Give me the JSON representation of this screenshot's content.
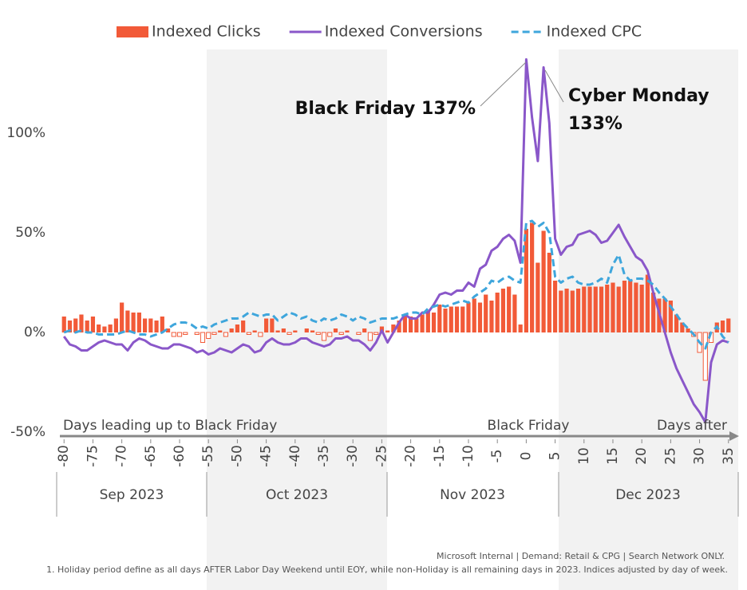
{
  "chart_data": {
    "type": "combo",
    "legend_position": "top",
    "x": [
      -80,
      -79,
      -78,
      -77,
      -76,
      -75,
      -74,
      -73,
      -72,
      -71,
      -70,
      -69,
      -68,
      -67,
      -66,
      -65,
      -64,
      -63,
      -62,
      -61,
      -60,
      -59,
      -58,
      -57,
      -56,
      -55,
      -54,
      -53,
      -52,
      -51,
      -50,
      -49,
      -48,
      -47,
      -46,
      -45,
      -44,
      -43,
      -42,
      -41,
      -40,
      -39,
      -38,
      -37,
      -36,
      -35,
      -34,
      -33,
      -32,
      -31,
      -30,
      -29,
      -28,
      -27,
      -26,
      -25,
      -24,
      -23,
      -22,
      -21,
      -20,
      -19,
      -18,
      -17,
      -16,
      -15,
      -14,
      -13,
      -12,
      -11,
      -10,
      -9,
      -8,
      -7,
      -6,
      -5,
      -4,
      -3,
      -2,
      -1,
      0,
      1,
      2,
      3,
      4,
      5,
      6,
      7,
      8,
      9,
      10,
      11,
      12,
      13,
      14,
      15,
      16,
      17,
      18,
      19,
      20,
      21,
      22,
      23,
      24,
      25,
      26,
      27,
      28,
      29,
      30,
      31,
      32,
      33,
      34,
      35
    ],
    "series": [
      {
        "name": "Indexed Clicks",
        "kind": "bar",
        "color": "#f25a38",
        "values": [
          8,
          6,
          7,
          9,
          6,
          8,
          4,
          3,
          4,
          7,
          15,
          11,
          10,
          10,
          7,
          7,
          6,
          8,
          2,
          -2,
          -2,
          -1,
          0,
          -1,
          -5,
          -3,
          -1,
          1,
          -2,
          2,
          4,
          6,
          -1,
          1,
          -2,
          7,
          7,
          1,
          2,
          -1,
          1,
          0,
          2,
          1,
          -1,
          -4,
          -2,
          2,
          -1,
          1,
          0,
          -1,
          2,
          -4,
          -1,
          3,
          1,
          4,
          6,
          9,
          8,
          7,
          9,
          11,
          10,
          14,
          12,
          13,
          13,
          13,
          15,
          17,
          15,
          19,
          16,
          20,
          22,
          23,
          19,
          4,
          52,
          55,
          35,
          51,
          40,
          26,
          21,
          22,
          21,
          22,
          23,
          23,
          23,
          23,
          24,
          25,
          23,
          26,
          26,
          25,
          24,
          29,
          20,
          17,
          17,
          16,
          9,
          5,
          2,
          -2,
          -10,
          -24,
          -5,
          5,
          6,
          7
        ]
      },
      {
        "name": "Indexed Conversions",
        "kind": "line",
        "color": "#8a57c9",
        "values": [
          -2,
          -6,
          -7,
          -9,
          -9,
          -7,
          -5,
          -4,
          -5,
          -6,
          -6,
          -9,
          -5,
          -3,
          -4,
          -6,
          -7,
          -8,
          -8,
          -6,
          -6,
          -7,
          -8,
          -10,
          -9,
          -11,
          -10,
          -8,
          -9,
          -10,
          -8,
          -6,
          -7,
          -10,
          -9,
          -5,
          -3,
          -5,
          -6,
          -6,
          -5,
          -3,
          -3,
          -5,
          -6,
          -7,
          -6,
          -3,
          -3,
          -2,
          -4,
          -4,
          -6,
          -9,
          -5,
          1,
          -5,
          0,
          5,
          9,
          7,
          7,
          10,
          10,
          14,
          19,
          20,
          19,
          21,
          21,
          25,
          23,
          32,
          34,
          41,
          43,
          47,
          49,
          46,
          35,
          137,
          108,
          86,
          133,
          105,
          47,
          39,
          43,
          44,
          49,
          50,
          51,
          49,
          45,
          46,
          50,
          54,
          48,
          43,
          38,
          36,
          31,
          20,
          10,
          0,
          -10,
          -18,
          -24,
          -30,
          -36,
          -40,
          -45,
          -15,
          -6,
          -4,
          -5
        ]
      },
      {
        "name": "Indexed CPC",
        "kind": "dashed-line",
        "color": "#3fa6dc",
        "values": [
          0,
          1,
          0,
          1,
          0,
          0,
          -1,
          -1,
          -1,
          -1,
          0,
          1,
          0,
          -1,
          -1,
          -2,
          -1,
          0,
          2,
          4,
          5,
          5,
          4,
          2,
          3,
          2,
          4,
          5,
          6,
          7,
          7,
          8,
          10,
          9,
          8,
          9,
          9,
          6,
          8,
          10,
          9,
          7,
          8,
          6,
          5,
          7,
          6,
          7,
          9,
          8,
          6,
          8,
          7,
          5,
          6,
          7,
          7,
          7,
          8,
          9,
          10,
          10,
          9,
          12,
          13,
          14,
          13,
          14,
          15,
          16,
          15,
          18,
          20,
          22,
          26,
          25,
          27,
          28,
          26,
          25,
          55,
          56,
          53,
          55,
          50,
          28,
          25,
          27,
          28,
          25,
          24,
          24,
          25,
          27,
          25,
          34,
          39,
          29,
          26,
          27,
          27,
          26,
          24,
          20,
          17,
          13,
          9,
          5,
          2,
          -1,
          -5,
          -8,
          0,
          3,
          -2,
          -5
        ]
      }
    ],
    "xlim": [
      -81,
      36
    ],
    "xticks": [
      -80,
      -75,
      -70,
      -65,
      -60,
      -55,
      -50,
      -45,
      -40,
      -35,
      -30,
      -25,
      -20,
      -15,
      -10,
      -5,
      0,
      5,
      10,
      15,
      20,
      25,
      30,
      35
    ],
    "ylim": [
      -50,
      140
    ],
    "yticks": [
      {
        "value": -50,
        "label": "-50%"
      },
      {
        "value": 0,
        "label": "0%"
      },
      {
        "value": 50,
        "label": "50%"
      },
      {
        "value": 100,
        "label": "100%"
      }
    ],
    "grid": false,
    "axis_labels": {
      "left": "Days leading up to Black Friday",
      "center": "Black Friday",
      "right": "Days after"
    },
    "months": [
      "Sep 2023",
      "Oct 2023",
      "Nov 2023",
      "Dec 2023"
    ],
    "annotations": [
      {
        "text": "Black Friday 137%"
      },
      {
        "lines": [
          "Cyber Monday",
          "133%"
        ]
      }
    ]
  },
  "footer": {
    "source": "Microsoft Internal | Demand: Retail & CPG | Search Network ONLY.",
    "note": "1. Holiday period define as all days AFTER Labor Day Weekend until EOY, while non-Holiday is all remaining days in 2023. Indices adjusted by day of week."
  }
}
